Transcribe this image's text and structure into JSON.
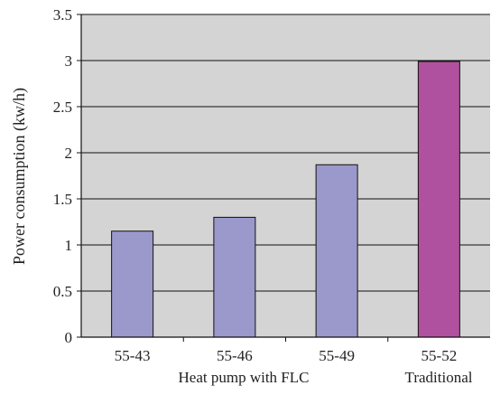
{
  "chart_data": {
    "type": "bar",
    "categories": [
      "55-43",
      "55-46",
      "55-49",
      "55-52"
    ],
    "values": [
      1.15,
      1.3,
      1.87,
      2.99
    ],
    "bar_colors": [
      "#9b98cb",
      "#9b98cb",
      "#9b98cb",
      "#b0519f"
    ],
    "ylabel": "Power consumption (kw/h)",
    "ylim": [
      0,
      3.5
    ],
    "yticks": [
      0,
      0.5,
      1,
      1.5,
      2,
      2.5,
      3,
      3.5
    ],
    "ytick_labels": [
      "0",
      "0.5",
      "1",
      "1.5",
      "2",
      "2.5",
      "3",
      "3.5"
    ],
    "grid": true,
    "x_group_labels": [
      {
        "text": "Heat pump with FLC",
        "color": "#222222"
      },
      {
        "text": "Traditional",
        "color": "#e03a3a"
      }
    ],
    "plot_background": "#d4d4d4"
  }
}
